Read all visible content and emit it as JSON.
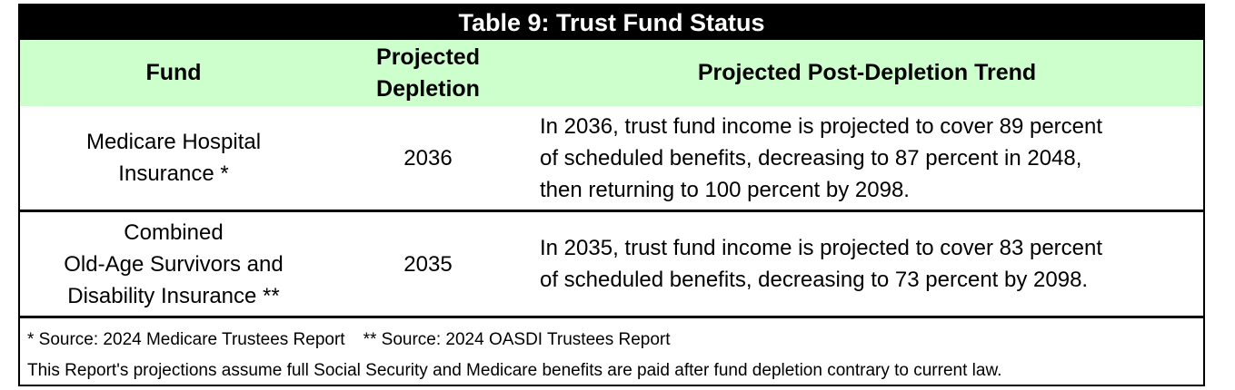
{
  "table": {
    "title": "Table 9: Trust Fund Status",
    "headers": {
      "fund": "Fund",
      "depletion": "Projected\nDepletion",
      "trend": "Projected Post-Depletion Trend"
    },
    "rows": [
      {
        "fund": "Medicare Hospital\nInsurance *",
        "depletion": "2036",
        "trend": "In 2036, trust fund income is projected to cover 89 percent\nof scheduled benefits, decreasing to 87 percent in 2048,\nthen returning to 100 percent by 2098."
      },
      {
        "fund": "Combined\nOld-Age Survivors and\nDisability Insurance **",
        "depletion": "2035",
        "trend": "In 2035, trust fund income is projected to cover 83 percent\nof scheduled benefits, decreasing to 73 percent by 2098."
      }
    ],
    "footnotes": {
      "medicare_source": "* Source: 2024 Medicare Trustees Report",
      "oasdi_source": "** Source: 2024 OASDI Trustees Report",
      "assumption": "This Report's projections assume full Social Security and Medicare benefits are paid after fund depletion contrary to current law."
    },
    "colors": {
      "title_bg": "#000000",
      "title_text": "#ffffff",
      "header_bg": "#ccffcc"
    }
  }
}
